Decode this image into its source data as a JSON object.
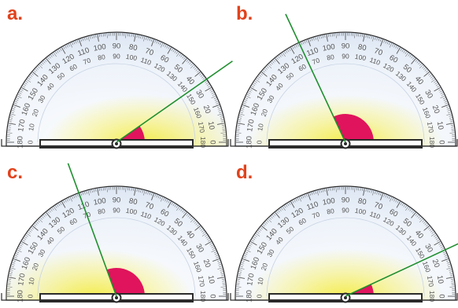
{
  "panels": [
    {
      "label": "a.",
      "angle": 35,
      "sector": "right",
      "glow": "right"
    },
    {
      "label": "b.",
      "angle": 115,
      "sector": "full",
      "glow": "center"
    },
    {
      "label": "c.",
      "angle": 110,
      "sector": "left",
      "glow": "left"
    },
    {
      "label": "d.",
      "angle": 25,
      "sector": "full",
      "glow": "center"
    }
  ],
  "colors": {
    "label": "#e2421b",
    "ray": "#1f8f2f",
    "sector": "#e0145c",
    "glow": "#f2ea3a",
    "body": "#e7eef8",
    "edge": "#2b2b2b",
    "scale": "#555555"
  },
  "scale": {
    "outer": [
      0,
      10,
      20,
      30,
      40,
      50,
      60,
      70,
      80,
      90,
      100,
      110,
      120,
      130,
      140,
      150,
      160,
      170,
      180
    ],
    "inner": [
      180,
      170,
      160,
      150,
      140,
      130,
      120,
      110,
      100,
      90,
      80,
      70,
      60,
      50,
      40,
      30,
      20,
      10,
      0
    ]
  }
}
